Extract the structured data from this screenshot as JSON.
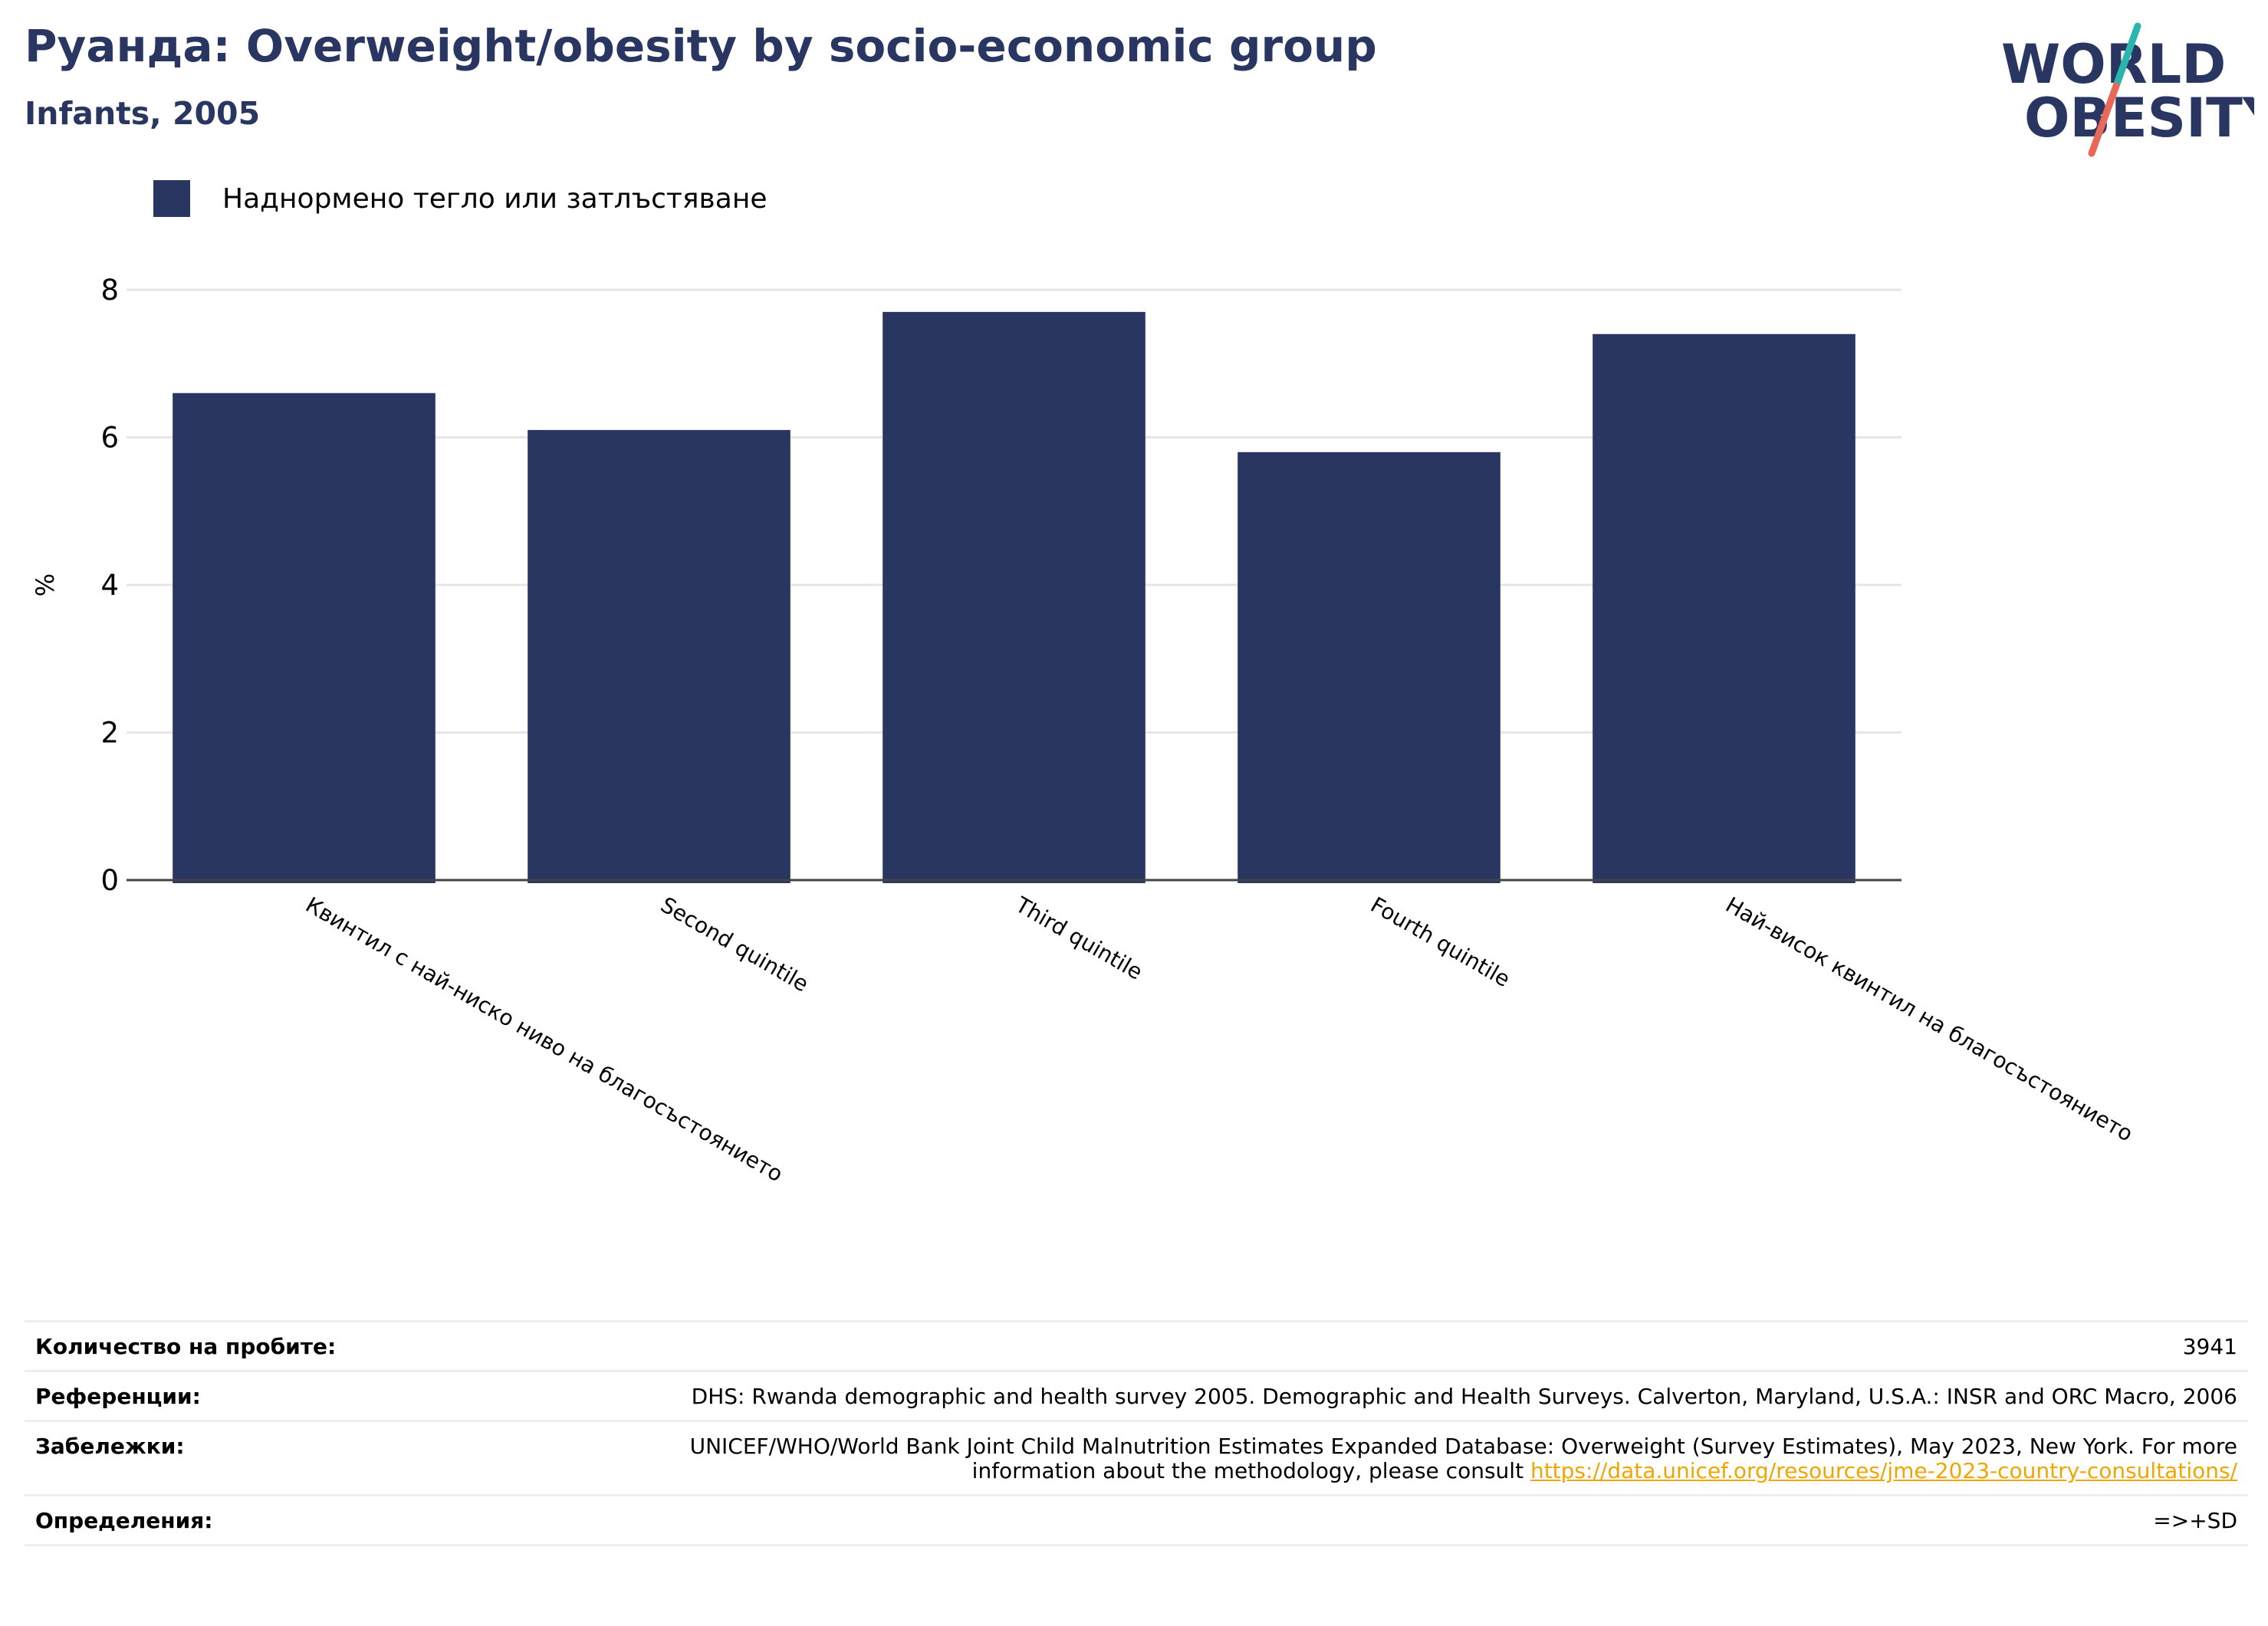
{
  "header": {
    "title": "Руанда: Overweight/obesity by socio-economic group",
    "subtitle": "Infants, 2005"
  },
  "logo": {
    "line1": "WORLD",
    "line2": "OBESITY",
    "colors": {
      "text": "#2a3662",
      "slash_top": "#2bb5b0",
      "slash_bottom": "#e8695a"
    }
  },
  "colors": {
    "bar": "#2a3662",
    "grid": "#e6e6e6",
    "axis": "#444444",
    "link": "#f0a500"
  },
  "chart_data": {
    "type": "bar",
    "title": "Руанда: Overweight/obesity by socio-economic group",
    "subtitle": "Infants, 2005",
    "ylabel": "%",
    "xlabel": "",
    "categories": [
      "Квинтил с най-ниско ниво на благосъстоянието",
      "Second quintile",
      "Third quintile",
      "Fourth quintile",
      "Най-висок квинтил на благосъстоянието"
    ],
    "series": [
      {
        "name": "Наднормено тегло или затлъстяване",
        "values": [
          6.6,
          6.1,
          7.7,
          5.8,
          7.4
        ]
      }
    ],
    "ylim": [
      0,
      8
    ],
    "yticks": [
      0,
      2,
      4,
      6,
      8
    ],
    "grid": true,
    "legend": "top-left"
  },
  "info": [
    {
      "label": "Количество на пробите:",
      "value": "3941"
    },
    {
      "label": "Референции:",
      "value": "DHS: Rwanda demographic and health survey 2005. Demographic and Health Surveys. Calverton, Maryland, U.S.A.: INSR and ORC Macro, 2006"
    },
    {
      "label": "Забележки:",
      "value": "UNICEF/WHO/World Bank Joint Child Malnutrition Estimates Expanded Database: Overweight (Survey Estimates), May 2023, New York. For more information about the methodology, please consult ",
      "link": "https://data.unicef.org/resources/jme-2023-country-consultations/"
    },
    {
      "label": "Определения:",
      "value": "=>+SD"
    }
  ]
}
